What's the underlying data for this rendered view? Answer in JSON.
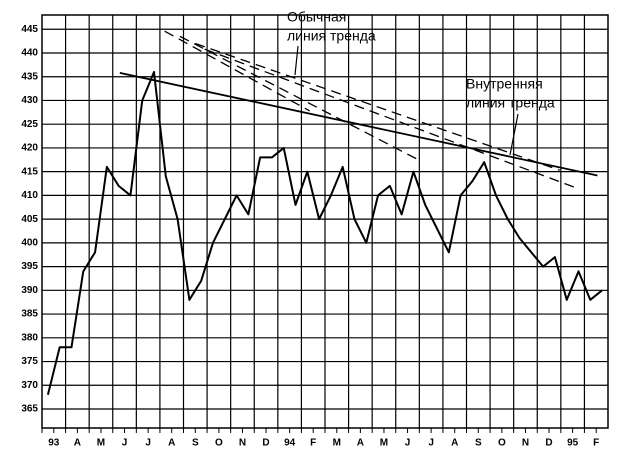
{
  "chart_data": {
    "type": "line",
    "categories": [
      "93",
      null,
      "A",
      null,
      "M",
      null,
      "J",
      null,
      "J",
      null,
      "A",
      null,
      "S",
      null,
      "O",
      null,
      "N",
      null,
      "D",
      null,
      "94",
      null,
      "F",
      null,
      "M",
      null,
      "A",
      null,
      "M",
      null,
      "J",
      null,
      "J",
      null,
      "A",
      null,
      "S",
      null,
      "O",
      null,
      "N",
      null,
      "D",
      null,
      "95",
      null,
      "F",
      null
    ],
    "series": [
      {
        "color": "#000000",
        "values": [
          368,
          378,
          378,
          394,
          398,
          416,
          412,
          410,
          430,
          436,
          414,
          405,
          388,
          392,
          400,
          405,
          410,
          406,
          418,
          418,
          420,
          408,
          415,
          405,
          410,
          416,
          405,
          400,
          410,
          412,
          406,
          415,
          408,
          403,
          398,
          410,
          413,
          417,
          410,
          405,
          401,
          398,
          395,
          397,
          388,
          394,
          388,
          390
        ]
      }
    ],
    "ylim": [
      361,
      448
    ],
    "yticks": [
      365,
      370,
      375,
      380,
      385,
      390,
      395,
      400,
      405,
      410,
      415,
      420,
      425,
      430,
      435,
      440,
      445
    ],
    "grid": true,
    "trend_lines": [
      {
        "style": "dashed",
        "x": [
          10.4,
          22.7
        ],
        "y": [
          444.6,
          427.8
        ]
      },
      {
        "style": "dashed",
        "x": [
          11.7,
          32
        ],
        "y": [
          443.5,
          417.4
        ]
      },
      {
        "style": "dashed",
        "x": [
          13,
          43.9
        ],
        "y": [
          442,
          415.3
        ]
      },
      {
        "style": "dashed",
        "x": [
          13.8,
          45.4
        ],
        "y": [
          440.8,
          411.5
        ]
      },
      {
        "style": "solid",
        "x": [
          6.6,
          47.1
        ],
        "y": [
          435.8,
          414.2
        ]
      }
    ],
    "annotations": [
      {
        "lines": [
          "Обычная",
          "линия тренда"
        ]
      },
      {
        "lines": [
          "Внутренняя",
          "линия тренда"
        ]
      }
    ]
  }
}
